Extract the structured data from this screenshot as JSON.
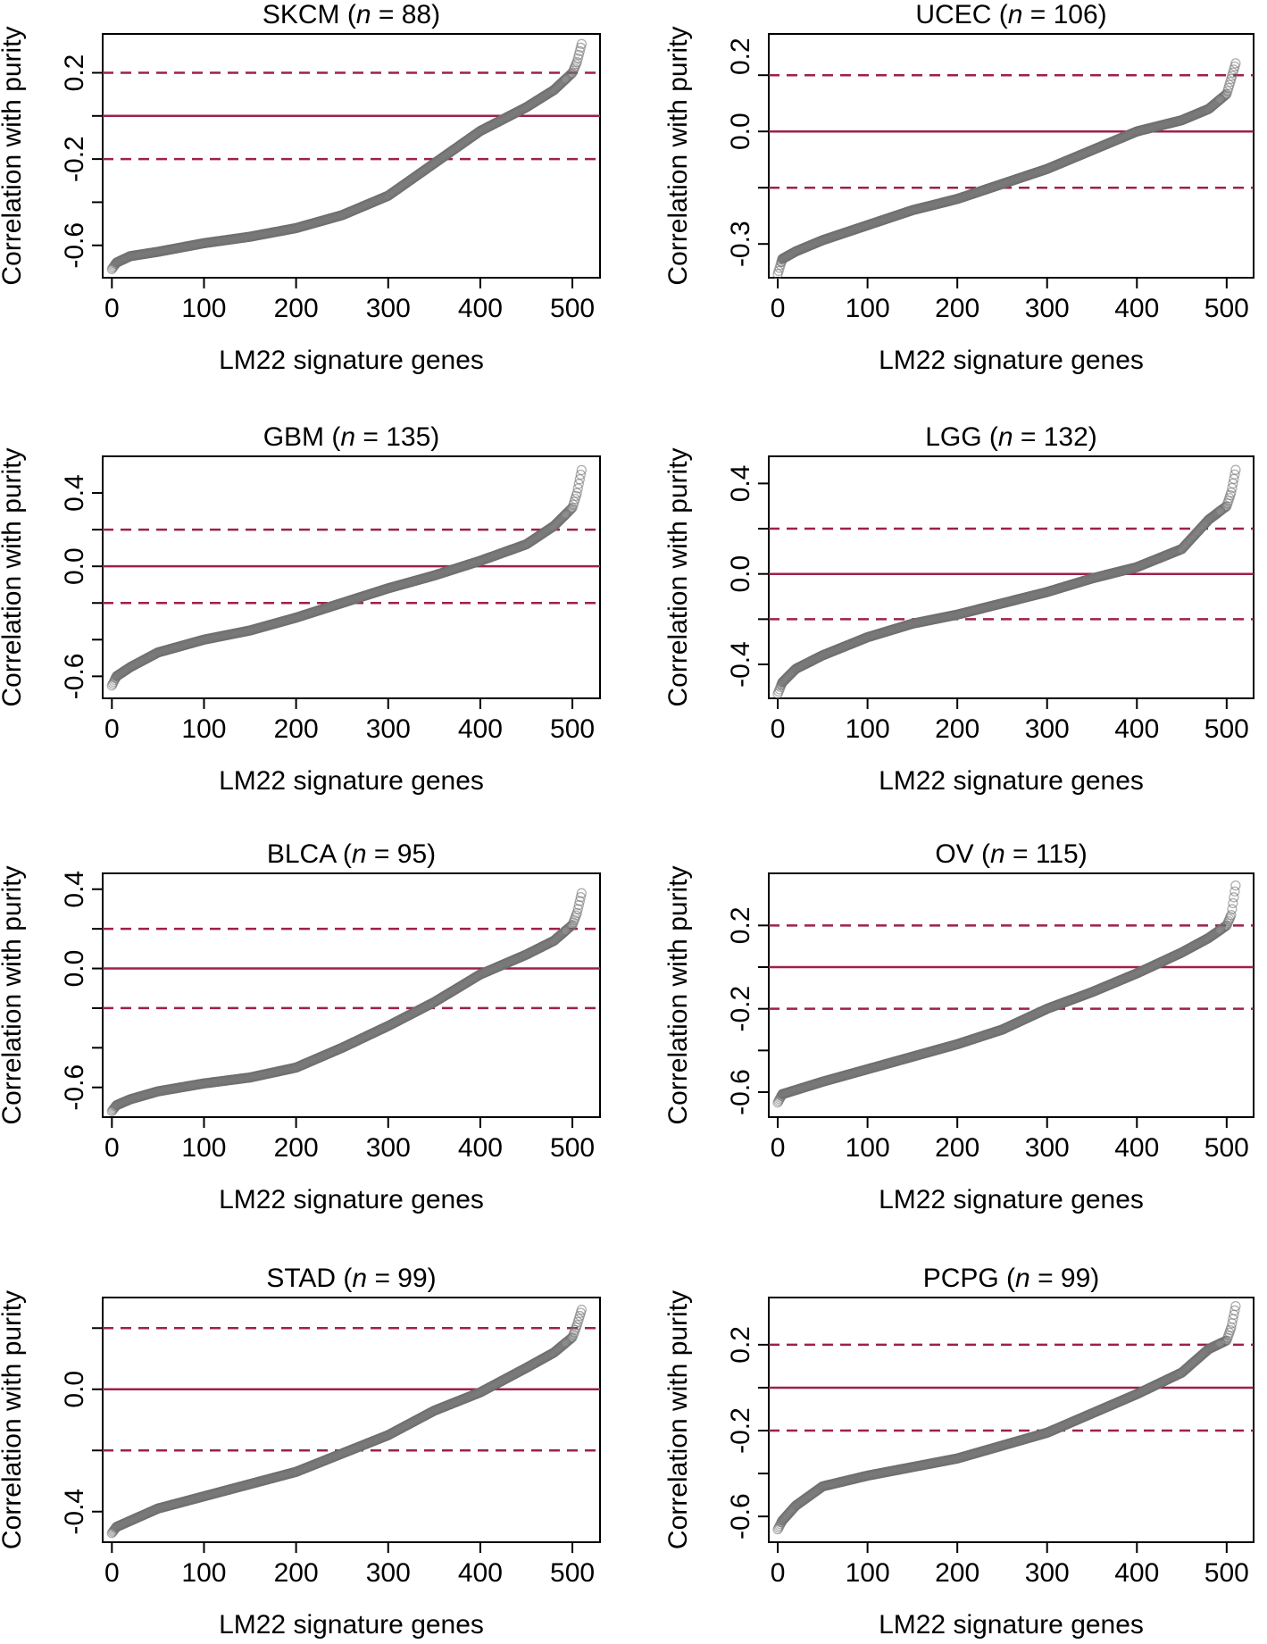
{
  "figure": {
    "y_axis_label": "Correlation with purity",
    "x_axis_label": "LM22 signature genes"
  },
  "chart_data": [
    {
      "type": "scatter",
      "title_prefix": "SKCM (",
      "title_n": "n",
      "title_suffix": " = 88)",
      "xlabel": "LM22 signature genes",
      "ylabel": "Correlation with purity",
      "xlim": [
        -10,
        530
      ],
      "ylim": [
        -0.75,
        0.38
      ],
      "xticks": [
        0,
        100,
        200,
        300,
        400,
        500
      ],
      "yticks": [
        -0.6,
        -0.4,
        -0.2,
        0.0,
        0.2
      ],
      "ytick_labels": [
        "-0.6",
        "",
        "-0.2",
        "",
        "0.2"
      ],
      "hlines": {
        "solid": 0.0,
        "dashed": [
          -0.2,
          0.2
        ]
      },
      "grid": false,
      "n_points": 511,
      "curve": [
        [
          0,
          -0.71
        ],
        [
          5,
          -0.68
        ],
        [
          20,
          -0.65
        ],
        [
          50,
          -0.63
        ],
        [
          100,
          -0.59
        ],
        [
          150,
          -0.56
        ],
        [
          200,
          -0.52
        ],
        [
          250,
          -0.46
        ],
        [
          300,
          -0.37
        ],
        [
          350,
          -0.22
        ],
        [
          400,
          -0.07
        ],
        [
          450,
          0.04
        ],
        [
          480,
          0.12
        ],
        [
          500,
          0.2
        ],
        [
          505,
          0.25
        ],
        [
          511,
          0.35
        ]
      ]
    },
    {
      "type": "scatter",
      "title_prefix": "UCEC (",
      "title_n": "n",
      "title_suffix": " = 106)",
      "xlabel": "LM22 signature genes",
      "ylabel": "Correlation with purity",
      "xlim": [
        -10,
        530
      ],
      "ylim": [
        -0.39,
        0.26
      ],
      "xticks": [
        0,
        100,
        200,
        300,
        400,
        500
      ],
      "yticks": [
        -0.3,
        -0.15,
        0.0,
        0.15
      ],
      "ytick_labels": [
        "-0.3",
        "",
        "0.0",
        ""
      ],
      "extra_ytick_labels": [
        {
          "value": 0.2,
          "label": "0.2"
        }
      ],
      "hlines": {
        "solid": 0.0,
        "dashed": [
          -0.15,
          0.15
        ]
      },
      "grid": false,
      "n_points": 511,
      "curve": [
        [
          0,
          -0.38
        ],
        [
          5,
          -0.34
        ],
        [
          20,
          -0.32
        ],
        [
          50,
          -0.29
        ],
        [
          100,
          -0.25
        ],
        [
          150,
          -0.21
        ],
        [
          200,
          -0.18
        ],
        [
          250,
          -0.14
        ],
        [
          300,
          -0.1
        ],
        [
          350,
          -0.05
        ],
        [
          400,
          0.0
        ],
        [
          450,
          0.03
        ],
        [
          480,
          0.06
        ],
        [
          500,
          0.1
        ],
        [
          505,
          0.14
        ],
        [
          511,
          0.19
        ]
      ]
    },
    {
      "type": "scatter",
      "title_prefix": "GBM (",
      "title_n": "n",
      "title_suffix": " = 135)",
      "xlabel": "LM22 signature genes",
      "ylabel": "Correlation with purity",
      "xlim": [
        -10,
        530
      ],
      "ylim": [
        -0.72,
        0.6
      ],
      "xticks": [
        0,
        100,
        200,
        300,
        400,
        500
      ],
      "yticks": [
        -0.6,
        -0.4,
        -0.2,
        0.0,
        0.2,
        0.4
      ],
      "ytick_labels": [
        "-0.6",
        "",
        "",
        "0.0",
        "",
        "0.4"
      ],
      "hlines": {
        "solid": 0.0,
        "dashed": [
          -0.2,
          0.2
        ]
      },
      "grid": false,
      "n_points": 511,
      "curve": [
        [
          0,
          -0.65
        ],
        [
          5,
          -0.6
        ],
        [
          20,
          -0.55
        ],
        [
          50,
          -0.47
        ],
        [
          100,
          -0.4
        ],
        [
          150,
          -0.35
        ],
        [
          200,
          -0.28
        ],
        [
          250,
          -0.2
        ],
        [
          300,
          -0.12
        ],
        [
          350,
          -0.05
        ],
        [
          400,
          0.03
        ],
        [
          450,
          0.12
        ],
        [
          480,
          0.22
        ],
        [
          500,
          0.32
        ],
        [
          505,
          0.4
        ],
        [
          511,
          0.55
        ]
      ]
    },
    {
      "type": "scatter",
      "title_prefix": "LGG (",
      "title_n": "n",
      "title_suffix": " = 132)",
      "xlabel": "LM22 signature genes",
      "ylabel": "Correlation with purity",
      "xlim": [
        -10,
        530
      ],
      "ylim": [
        -0.55,
        0.52
      ],
      "xticks": [
        0,
        100,
        200,
        300,
        400,
        500
      ],
      "yticks": [
        -0.4,
        -0.2,
        0.0,
        0.2,
        0.4
      ],
      "ytick_labels": [
        "-0.4",
        "",
        "0.0",
        "",
        "0.4"
      ],
      "hlines": {
        "solid": 0.0,
        "dashed": [
          -0.2,
          0.2
        ]
      },
      "grid": false,
      "n_points": 511,
      "curve": [
        [
          0,
          -0.53
        ],
        [
          5,
          -0.48
        ],
        [
          20,
          -0.42
        ],
        [
          50,
          -0.36
        ],
        [
          100,
          -0.28
        ],
        [
          150,
          -0.22
        ],
        [
          200,
          -0.18
        ],
        [
          250,
          -0.13
        ],
        [
          300,
          -0.08
        ],
        [
          350,
          -0.02
        ],
        [
          400,
          0.03
        ],
        [
          450,
          0.11
        ],
        [
          480,
          0.24
        ],
        [
          500,
          0.3
        ],
        [
          505,
          0.36
        ],
        [
          511,
          0.48
        ]
      ]
    },
    {
      "type": "scatter",
      "title_prefix": "BLCA (",
      "title_n": "n",
      "title_suffix": " = 95)",
      "xlabel": "LM22 signature genes",
      "ylabel": "Correlation with purity",
      "xlim": [
        -10,
        530
      ],
      "ylim": [
        -0.75,
        0.48
      ],
      "xticks": [
        0,
        100,
        200,
        300,
        400,
        500
      ],
      "yticks": [
        -0.6,
        -0.4,
        -0.2,
        0.0,
        0.2,
        0.4
      ],
      "ytick_labels": [
        "-0.6",
        "",
        "",
        "0.0",
        "",
        "0.4"
      ],
      "hlines": {
        "solid": 0.0,
        "dashed": [
          -0.2,
          0.2
        ]
      },
      "grid": false,
      "n_points": 511,
      "curve": [
        [
          0,
          -0.72
        ],
        [
          5,
          -0.69
        ],
        [
          20,
          -0.66
        ],
        [
          50,
          -0.62
        ],
        [
          100,
          -0.58
        ],
        [
          150,
          -0.55
        ],
        [
          200,
          -0.5
        ],
        [
          250,
          -0.4
        ],
        [
          300,
          -0.29
        ],
        [
          350,
          -0.17
        ],
        [
          400,
          -0.03
        ],
        [
          450,
          0.07
        ],
        [
          480,
          0.14
        ],
        [
          500,
          0.22
        ],
        [
          505,
          0.28
        ],
        [
          511,
          0.4
        ]
      ]
    },
    {
      "type": "scatter",
      "title_prefix": "OV (",
      "title_n": "n",
      "title_suffix": " = 115)",
      "xlabel": "LM22 signature genes",
      "ylabel": "Correlation with purity",
      "xlim": [
        -10,
        530
      ],
      "ylim": [
        -0.72,
        0.45
      ],
      "xticks": [
        0,
        100,
        200,
        300,
        400,
        500
      ],
      "yticks": [
        -0.6,
        -0.4,
        -0.2,
        0.0,
        0.2
      ],
      "ytick_labels": [
        "-0.6",
        "",
        "-0.2",
        "",
        "0.2"
      ],
      "hlines": {
        "solid": 0.0,
        "dashed": [
          -0.2,
          0.2
        ]
      },
      "grid": false,
      "n_points": 511,
      "curve": [
        [
          0,
          -0.65
        ],
        [
          5,
          -0.61
        ],
        [
          20,
          -0.59
        ],
        [
          50,
          -0.55
        ],
        [
          100,
          -0.49
        ],
        [
          150,
          -0.43
        ],
        [
          200,
          -0.37
        ],
        [
          250,
          -0.3
        ],
        [
          300,
          -0.2
        ],
        [
          350,
          -0.12
        ],
        [
          400,
          -0.03
        ],
        [
          450,
          0.07
        ],
        [
          480,
          0.14
        ],
        [
          500,
          0.2
        ],
        [
          505,
          0.25
        ],
        [
          511,
          0.42
        ]
      ]
    },
    {
      "type": "scatter",
      "title_prefix": "STAD (",
      "title_n": "n",
      "title_suffix": " = 99)",
      "xlabel": "LM22 signature genes",
      "ylabel": "Correlation with purity",
      "xlim": [
        -10,
        530
      ],
      "ylim": [
        -0.5,
        0.3
      ],
      "xticks": [
        0,
        100,
        200,
        300,
        400,
        500
      ],
      "yticks": [
        -0.4,
        -0.2,
        0.0,
        0.2
      ],
      "ytick_labels": [
        "-0.4",
        "",
        "0.0",
        ""
      ],
      "hlines": {
        "solid": 0.0,
        "dashed": [
          -0.2,
          0.2
        ]
      },
      "grid": false,
      "n_points": 511,
      "curve": [
        [
          0,
          -0.47
        ],
        [
          5,
          -0.45
        ],
        [
          20,
          -0.43
        ],
        [
          50,
          -0.39
        ],
        [
          100,
          -0.35
        ],
        [
          150,
          -0.31
        ],
        [
          200,
          -0.27
        ],
        [
          250,
          -0.21
        ],
        [
          300,
          -0.15
        ],
        [
          350,
          -0.07
        ],
        [
          400,
          -0.01
        ],
        [
          450,
          0.07
        ],
        [
          480,
          0.12
        ],
        [
          500,
          0.17
        ],
        [
          505,
          0.21
        ],
        [
          511,
          0.27
        ]
      ]
    },
    {
      "type": "scatter",
      "title_prefix": "PCPG (",
      "title_n": "n",
      "title_suffix": " = 99)",
      "xlabel": "LM22 signature genes",
      "ylabel": "Correlation with purity",
      "xlim": [
        -10,
        530
      ],
      "ylim": [
        -0.72,
        0.42
      ],
      "xticks": [
        0,
        100,
        200,
        300,
        400,
        500
      ],
      "yticks": [
        -0.6,
        -0.4,
        -0.2,
        0.0,
        0.2
      ],
      "ytick_labels": [
        "-0.6",
        "",
        "-0.2",
        "",
        "0.2"
      ],
      "hlines": {
        "solid": 0.0,
        "dashed": [
          -0.2,
          0.2
        ]
      },
      "grid": false,
      "n_points": 511,
      "curve": [
        [
          0,
          -0.66
        ],
        [
          5,
          -0.62
        ],
        [
          20,
          -0.55
        ],
        [
          50,
          -0.46
        ],
        [
          100,
          -0.41
        ],
        [
          150,
          -0.37
        ],
        [
          200,
          -0.33
        ],
        [
          250,
          -0.27
        ],
        [
          300,
          -0.21
        ],
        [
          350,
          -0.12
        ],
        [
          400,
          -0.03
        ],
        [
          450,
          0.07
        ],
        [
          480,
          0.18
        ],
        [
          500,
          0.22
        ],
        [
          505,
          0.28
        ],
        [
          511,
          0.4
        ]
      ]
    }
  ],
  "colors": {
    "reference_line": "#9e2148",
    "point_edge": "#6e6e6e",
    "point_fill": "#b0b0b0"
  }
}
